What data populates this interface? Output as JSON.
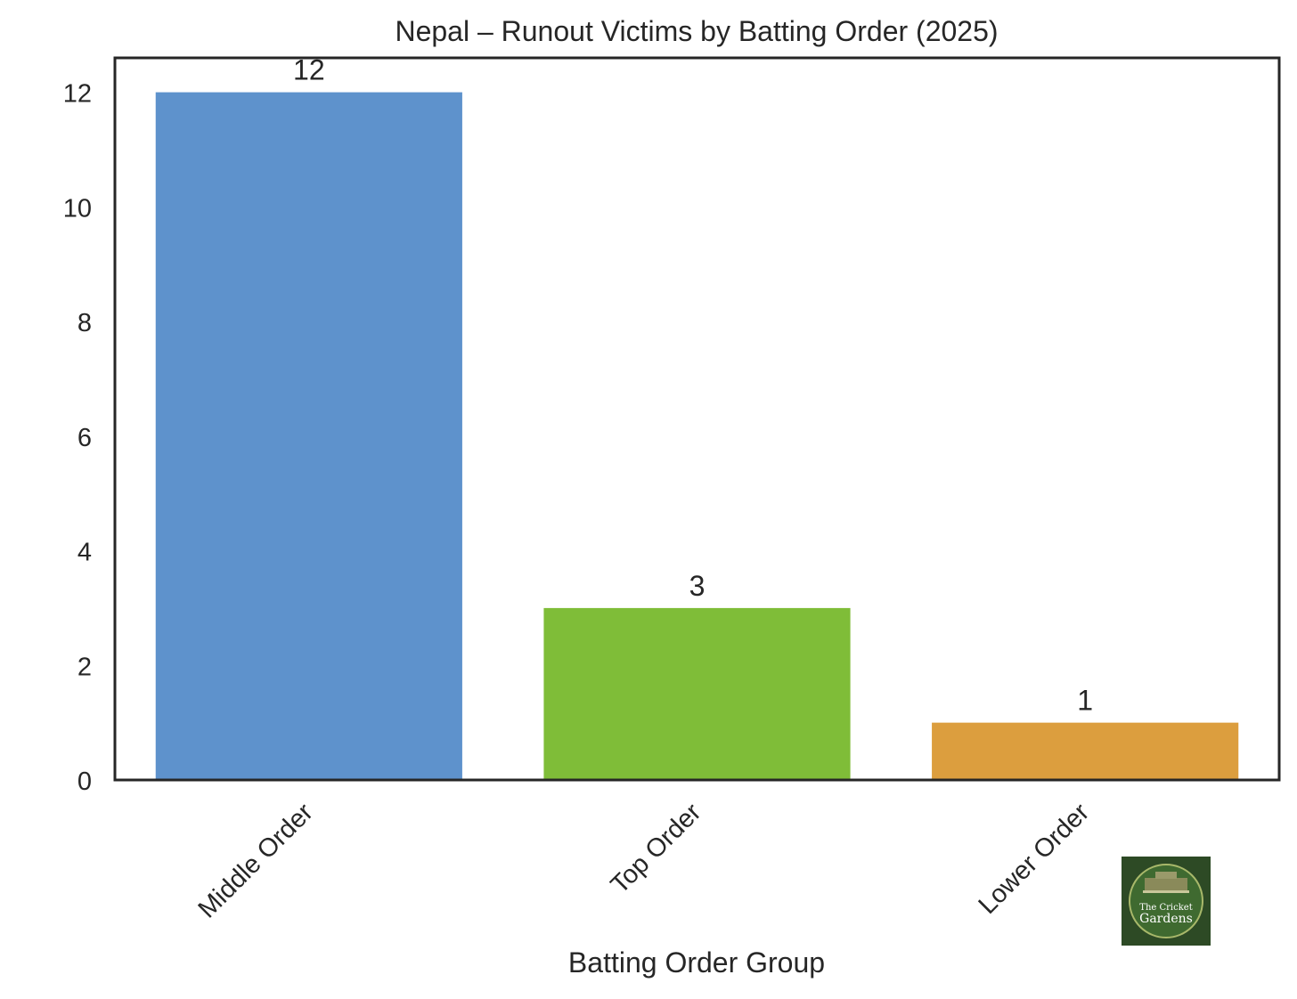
{
  "chart_data": {
    "type": "bar",
    "title": "Nepal – Runout Victims by Batting Order (2025)",
    "xlabel": "Batting Order Group",
    "ylabel": "",
    "categories": [
      "Middle Order",
      "Top Order",
      "Lower Order"
    ],
    "values": [
      12,
      3,
      1
    ],
    "colors": [
      "#5e92cc",
      "#7fbd38",
      "#dc9e3e"
    ],
    "data_labels": [
      "12",
      "3",
      "1"
    ],
    "yticks": [
      "0",
      "2",
      "4",
      "6",
      "8",
      "10",
      "12"
    ],
    "ylim": [
      0,
      12.6
    ],
    "grid": false,
    "legend": "none"
  },
  "logo": {
    "line1": "The Cricket",
    "line2": "Gardens"
  }
}
